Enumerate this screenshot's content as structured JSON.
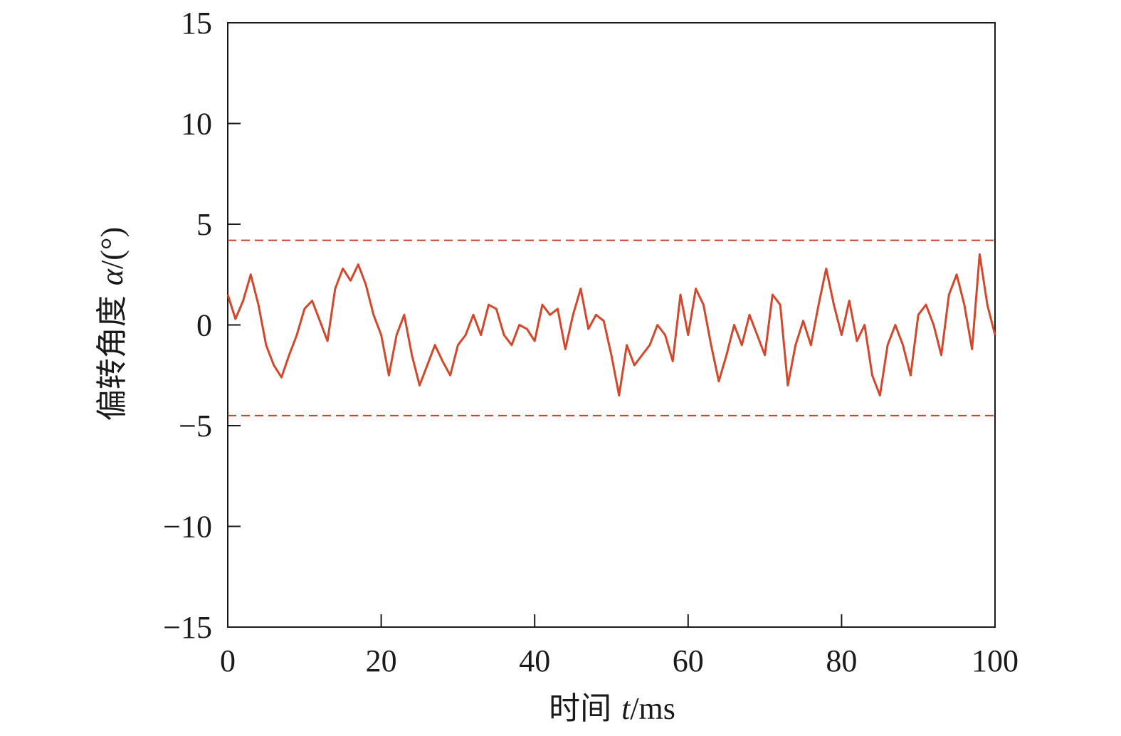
{
  "chart_data": {
    "type": "line",
    "xlabel": {
      "prefix": "时间 ",
      "var": "t",
      "unit": "/ms"
    },
    "ylabel": {
      "prefix": "偏转角度 ",
      "var": "α",
      "unit": "/(°)"
    },
    "xlim": [
      0,
      100
    ],
    "ylim": [
      -15,
      15
    ],
    "xticks": [
      0,
      20,
      40,
      60,
      80,
      100
    ],
    "yticks": [
      -15,
      -10,
      -5,
      0,
      5,
      10,
      15
    ],
    "xtick_labels": [
      "0",
      "20",
      "40",
      "60",
      "80",
      "100"
    ],
    "ytick_labels": [
      "−15",
      "−10",
      "−5",
      "0",
      "5",
      "10",
      "15"
    ],
    "grid": false,
    "colors": {
      "series": "#d4472a",
      "bounds": "#c0462a",
      "axis": "#1a1a1a"
    },
    "bounds": [
      4.2,
      -4.5
    ],
    "series": [
      {
        "x": [
          0,
          1,
          2,
          3,
          4,
          5,
          6,
          7,
          8,
          9,
          10,
          11,
          12,
          13,
          14,
          15,
          16,
          17,
          18,
          19,
          20,
          21,
          22,
          23,
          24,
          25,
          26,
          27,
          28,
          29,
          30,
          31,
          32,
          33,
          34,
          35,
          36,
          37,
          38,
          39,
          40,
          41,
          42,
          43,
          44,
          45,
          46,
          47,
          48,
          49,
          50,
          51,
          52,
          53,
          54,
          55,
          56,
          57,
          58,
          59,
          60,
          61,
          62,
          63,
          64,
          65,
          66,
          67,
          68,
          69,
          70,
          71,
          72,
          73,
          74,
          75,
          76,
          77,
          78,
          79,
          80,
          81,
          82,
          83,
          84,
          85,
          86,
          87,
          88,
          89,
          90,
          91,
          92,
          93,
          94,
          95,
          96,
          97,
          98,
          99,
          100
        ],
        "y": [
          1.5,
          0.3,
          1.2,
          2.5,
          1.0,
          -1.0,
          -2.0,
          -2.6,
          -1.5,
          -0.5,
          0.8,
          1.2,
          0.2,
          -0.8,
          1.8,
          2.8,
          2.2,
          3.0,
          2.0,
          0.5,
          -0.5,
          -2.5,
          -0.5,
          0.5,
          -1.5,
          -3.0,
          -2.0,
          -1.0,
          -1.8,
          -2.5,
          -1.0,
          -0.5,
          0.5,
          -0.5,
          1.0,
          0.8,
          -0.5,
          -1.0,
          0.0,
          -0.2,
          -0.8,
          1.0,
          0.5,
          0.8,
          -1.2,
          0.5,
          1.8,
          -0.2,
          0.5,
          0.2,
          -1.5,
          -3.5,
          -1.0,
          -2.0,
          -1.5,
          -1.0,
          0.0,
          -0.5,
          -1.8,
          1.5,
          -0.5,
          1.8,
          1.0,
          -1.0,
          -2.8,
          -1.5,
          0.0,
          -1.0,
          0.5,
          -0.5,
          -1.5,
          1.5,
          1.0,
          -3.0,
          -1.0,
          0.2,
          -1.0,
          1.0,
          2.8,
          1.0,
          -0.5,
          1.2,
          -0.8,
          0.0,
          -2.5,
          -3.5,
          -1.0,
          0.0,
          -1.0,
          -2.5,
          0.5,
          1.0,
          0.0,
          -1.5,
          1.5,
          2.5,
          1.0,
          -1.2,
          3.5,
          1.0,
          -0.5
        ]
      }
    ]
  }
}
